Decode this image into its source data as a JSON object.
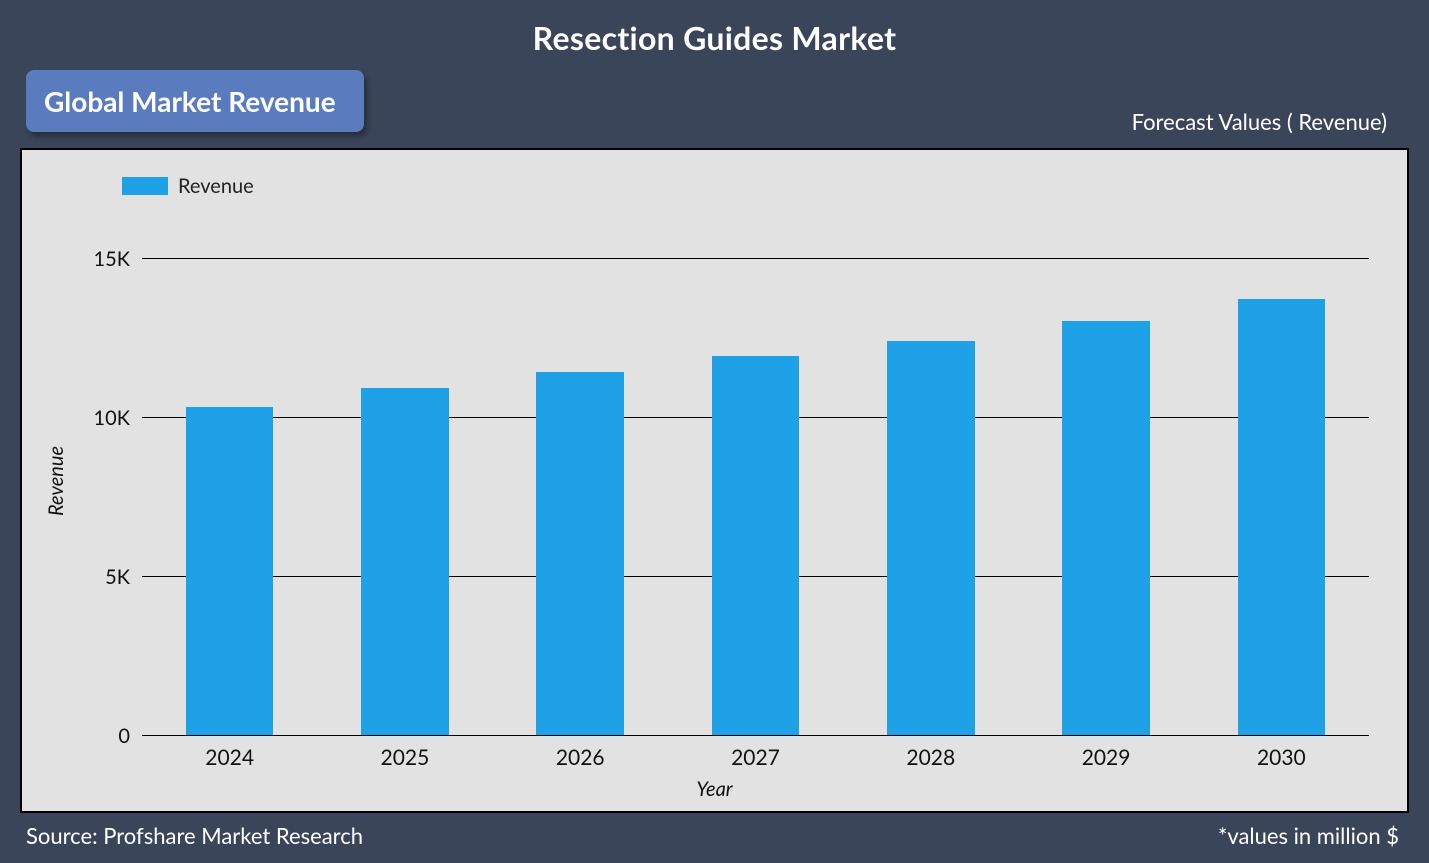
{
  "page": {
    "background_color": "#3b4559",
    "title": "Resection Guides Market",
    "title_color": "#ffffff",
    "title_fontsize": 32,
    "badge": {
      "text": "Global Market Revenue",
      "bg_color": "#5b7bbf",
      "text_color": "#ffffff",
      "fontsize": 28
    },
    "forecast_label": "Forecast Values ( Revenue)",
    "forecast_label_color": "#ffffff",
    "forecast_label_fontsize": 22,
    "footer_left": "Source: Profshare Market Research",
    "footer_right": "*values in million $",
    "footer_color": "#ffffff",
    "footer_fontsize": 22
  },
  "chart": {
    "type": "bar",
    "panel_bg": "#e2e2e2",
    "panel_border": "#000000",
    "legend": {
      "label": "Revenue",
      "swatch_color": "#1ea1e6",
      "fontsize": 20
    },
    "y_axis": {
      "title": "Revenue",
      "min": 0,
      "max": 16000,
      "ticks": [
        {
          "value": 0,
          "label": "0"
        },
        {
          "value": 5000,
          "label": "5K"
        },
        {
          "value": 10000,
          "label": "10K"
        },
        {
          "value": 15000,
          "label": "15K"
        }
      ],
      "grid_color": "#000000",
      "label_fontsize": 20
    },
    "x_axis": {
      "title": "Year",
      "label_fontsize": 21
    },
    "bars": {
      "color": "#1ea1e6",
      "width_fraction": 0.5,
      "categories": [
        "2024",
        "2025",
        "2026",
        "2027",
        "2028",
        "2029",
        "2030"
      ],
      "values": [
        10300,
        10900,
        11400,
        11900,
        12400,
        13000,
        13700
      ]
    }
  }
}
